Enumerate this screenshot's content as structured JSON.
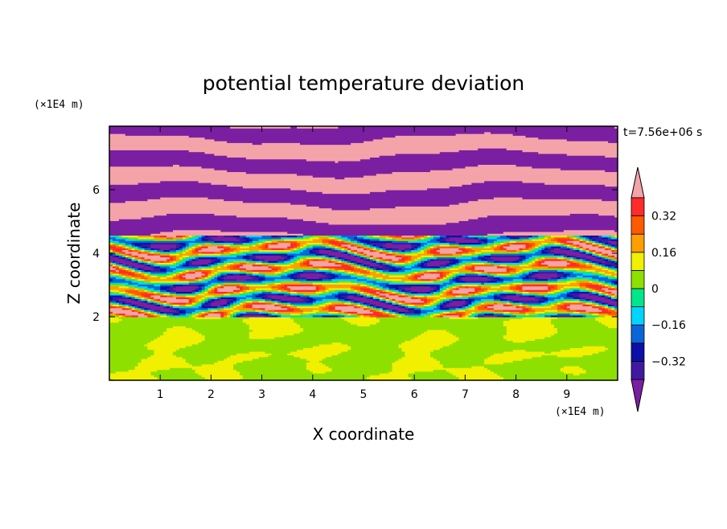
{
  "chart_data": {
    "type": "heatmap",
    "title": "potential temperature deviation",
    "xlabel": "X coordinate",
    "ylabel": "Z coordinate",
    "x_unit": "(×1E4 m)",
    "y_unit": "(×1E4 m)",
    "time_label": "t=7.56e+06 s",
    "xlim": [
      0,
      10
    ],
    "ylim": [
      0,
      8
    ],
    "x_ticks": [
      "1",
      "2",
      "3",
      "4",
      "5",
      "6",
      "7",
      "8",
      "9"
    ],
    "y_ticks": [
      "2",
      "4",
      "6"
    ],
    "colorbar": {
      "levels": [
        -0.4,
        -0.32,
        -0.24,
        -0.16,
        -0.08,
        0,
        0.08,
        0.16,
        0.24,
        0.32,
        0.4
      ],
      "tick_labels": [
        "0.32",
        "0.16",
        "0",
        "−0.16",
        "−0.32"
      ],
      "tick_values": [
        0.32,
        0.16,
        0,
        -0.16,
        -0.32
      ],
      "colors": [
        "#7b1fa2",
        "#3f1aa0",
        "#0c10a8",
        "#0a66d8",
        "#00d4ff",
        "#00e68a",
        "#8ee000",
        "#f0f000",
        "#ff9e00",
        "#ff5a00",
        "#ff2a2a",
        "#f4a3a8"
      ],
      "extend": "both"
    },
    "regions": [
      {
        "z_range": [
          0,
          2
        ],
        "dominant": "0 to 0.08",
        "pattern": "green/light-green eddies"
      },
      {
        "z_range": [
          2,
          4.5
        ],
        "dominant": "mixed",
        "pattern": "turbulent full-range layers"
      },
      {
        "z_range": [
          4.5,
          8
        ],
        "dominant": "alternating pink (>0.4) and purple (<-0.4)",
        "pattern": "horizontal layers"
      }
    ]
  }
}
